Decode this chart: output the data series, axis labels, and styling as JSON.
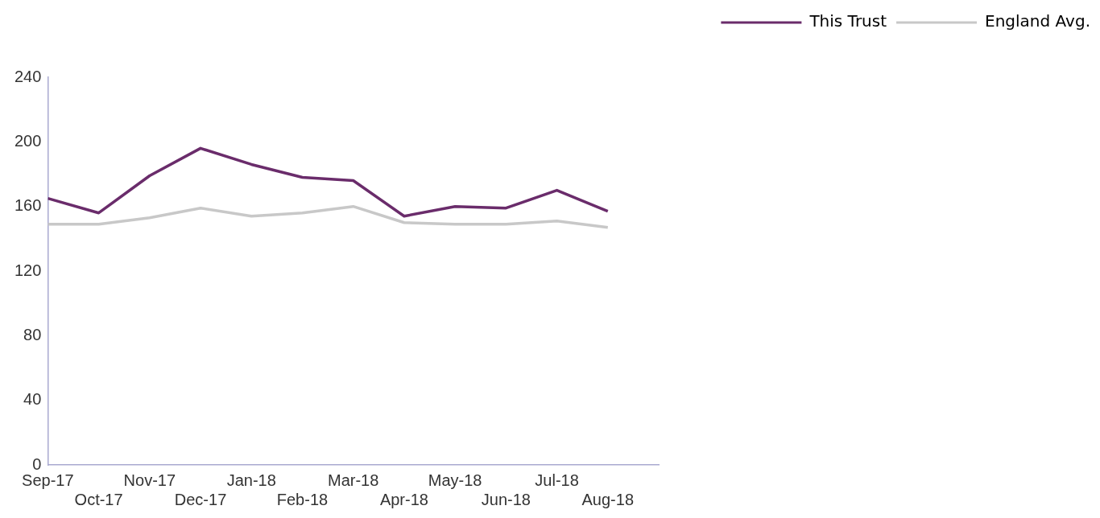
{
  "chart_data": {
    "type": "line",
    "categories": [
      "Sep-17",
      "Oct-17",
      "Nov-17",
      "Dec-17",
      "Jan-18",
      "Feb-18",
      "Mar-18",
      "Apr-18",
      "May-18",
      "Jun-18",
      "Jul-18",
      "Aug-18"
    ],
    "series": [
      {
        "name": "This Trust",
        "color": "#6a2c6b",
        "values": [
          165,
          156,
          179,
          196,
          186,
          178,
          176,
          154,
          160,
          159,
          170,
          157
        ]
      },
      {
        "name": "England Avg.",
        "color": "#c8c8c8",
        "values": [
          149,
          149,
          153,
          159,
          154,
          156,
          160,
          150,
          149,
          149,
          151,
          147
        ]
      }
    ],
    "ylim": [
      0,
      240
    ],
    "yticks": [
      0,
      40,
      80,
      120,
      160,
      200,
      240
    ],
    "grid": false,
    "legend": "top right",
    "marker": "none",
    "line_style": "solid"
  }
}
